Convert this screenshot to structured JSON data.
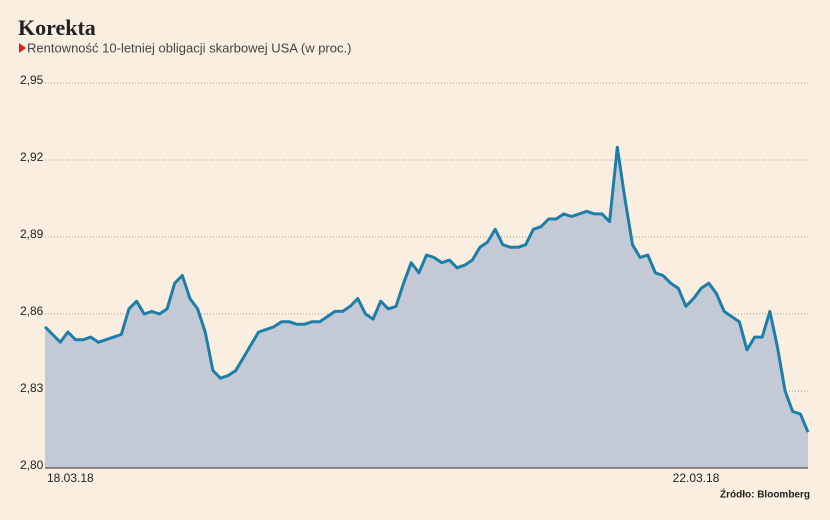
{
  "chart_data": {
    "type": "area",
    "title": "Korekta",
    "subtitle": "Rentowność 10-letniej obligacji skarbowej USA (w proc.)",
    "source": "Źródło: Bloomberg",
    "categories": [
      "18.03.18",
      null,
      null,
      null,
      null,
      null,
      null,
      null,
      null,
      null,
      null,
      null,
      null,
      null,
      null,
      null,
      null,
      null,
      null,
      null,
      null,
      null,
      null,
      null,
      null,
      null,
      null,
      null,
      null,
      null,
      null,
      null,
      null,
      null,
      null,
      null,
      null,
      null,
      null,
      null,
      null,
      null,
      null,
      null,
      null,
      null,
      null,
      null,
      null,
      null,
      null,
      null,
      null,
      null,
      null,
      null,
      null,
      null,
      null,
      null,
      null,
      null,
      null,
      null,
      null,
      null,
      null,
      null,
      null,
      null,
      null,
      null,
      null,
      null,
      null,
      null,
      null,
      null,
      null,
      null,
      null,
      null,
      "22.03.18",
      null,
      null,
      null,
      null,
      null,
      null,
      null,
      null,
      null,
      null,
      null,
      null,
      null,
      null,
      null,
      null,
      null,
      null
    ],
    "values": [
      2.855,
      2.852,
      2.849,
      2.853,
      2.85,
      2.85,
      2.851,
      2.849,
      2.85,
      2.851,
      2.852,
      2.862,
      2.865,
      2.86,
      2.861,
      2.86,
      2.862,
      2.872,
      2.875,
      2.866,
      2.862,
      2.853,
      2.838,
      2.835,
      2.836,
      2.838,
      2.843,
      2.848,
      2.853,
      2.854,
      2.855,
      2.857,
      2.857,
      2.856,
      2.856,
      2.857,
      2.857,
      2.859,
      2.861,
      2.861,
      2.863,
      2.866,
      2.86,
      2.858,
      2.865,
      2.862,
      2.863,
      2.872,
      2.88,
      2.876,
      2.883,
      2.882,
      2.88,
      2.881,
      2.878,
      2.879,
      2.881,
      2.886,
      2.888,
      2.893,
      2.887,
      2.886,
      2.886,
      2.887,
      2.893,
      2.894,
      2.897,
      2.897,
      2.899,
      2.898,
      2.899,
      2.9,
      2.899,
      2.899,
      2.896,
      2.925,
      2.905,
      2.887,
      2.882,
      2.883,
      2.876,
      2.875,
      2.872,
      2.87,
      2.863,
      2.866,
      2.87,
      2.872,
      2.868,
      2.861,
      2.859,
      2.857,
      2.846,
      2.851,
      2.851,
      2.861,
      2.847,
      2.83,
      2.822,
      2.821,
      2.814
    ],
    "color": "#1d7fa8",
    "fill": "#c4c9d6",
    "ylim": [
      2.8,
      2.95
    ],
    "yticks": [
      {
        "value": 2.8,
        "label": "2,80"
      },
      {
        "value": 2.83,
        "label": "2,83"
      },
      {
        "value": 2.86,
        "label": "2,86"
      },
      {
        "value": 2.89,
        "label": "2,89"
      },
      {
        "value": 2.92,
        "label": "2,92"
      },
      {
        "value": 2.95,
        "label": "2,95"
      }
    ],
    "grid": true
  }
}
